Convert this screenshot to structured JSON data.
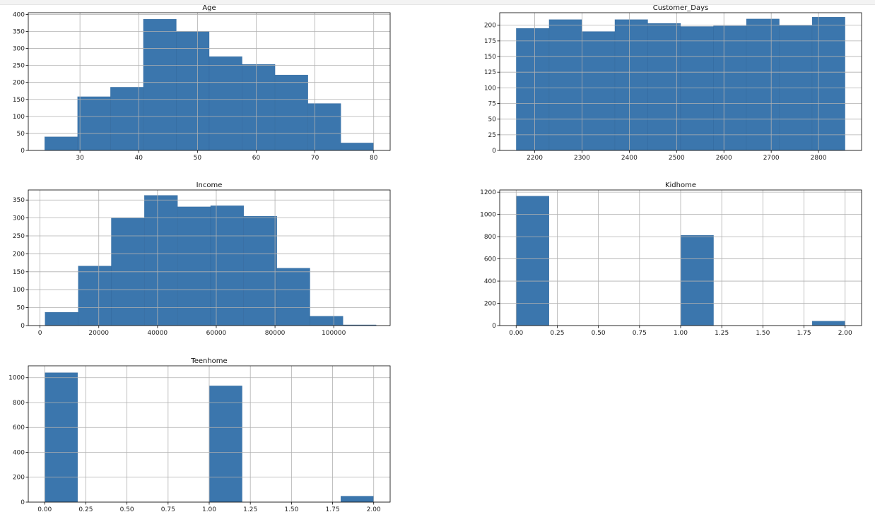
{
  "figure": {
    "bar_color": "#3b76ad",
    "bar_edge_color": "#2f6396",
    "grid_color": "#b0b0b0",
    "axis_color": "#000000",
    "background": "#ffffff"
  },
  "chart_data": [
    {
      "type": "bar",
      "title": "Age",
      "grid": true,
      "xlim": [
        21.2,
        82.8
      ],
      "ylim": [
        0,
        405
      ],
      "xticks": [
        30,
        40,
        50,
        60,
        70,
        80
      ],
      "yticks": [
        0,
        50,
        100,
        150,
        200,
        250,
        300,
        350,
        400
      ],
      "bin_edges": [
        24,
        29.6,
        35.2,
        40.8,
        46.4,
        52,
        57.6,
        63.2,
        68.8,
        74.4,
        80
      ],
      "values": [
        40,
        158,
        186,
        386,
        350,
        276,
        253,
        222,
        138,
        22
      ]
    },
    {
      "type": "bar",
      "title": "Customer_Days",
      "grid": true,
      "xlim": [
        2126,
        2891
      ],
      "ylim": [
        0,
        220
      ],
      "xticks": [
        2200,
        2300,
        2400,
        2500,
        2600,
        2700,
        2800
      ],
      "yticks": [
        0,
        25,
        50,
        75,
        100,
        125,
        150,
        175,
        200
      ],
      "bin_edges": [
        2161,
        2230.5,
        2300,
        2369.5,
        2439,
        2508.5,
        2578,
        2647.5,
        2717,
        2786.5,
        2856
      ],
      "values": [
        195,
        209,
        190,
        209,
        203,
        198,
        199,
        210,
        200,
        213
      ]
    },
    {
      "type": "bar",
      "title": "Income",
      "grid": true,
      "xlim": [
        -4000,
        119200
      ],
      "ylim": [
        0,
        378
      ],
      "xticks": [
        0,
        20000,
        40000,
        60000,
        80000,
        100000
      ],
      "yticks": [
        0,
        50,
        100,
        150,
        200,
        250,
        300,
        350
      ],
      "bin_edges": [
        1730,
        13000,
        24270,
        35540,
        46810,
        58080,
        69350,
        80620,
        91890,
        103160,
        114430
      ],
      "values": [
        37,
        166,
        301,
        363,
        331,
        334,
        305,
        160,
        26,
        2
      ]
    },
    {
      "type": "bar",
      "title": "Kidhome",
      "grid": true,
      "xlim": [
        -0.1,
        2.1
      ],
      "ylim": [
        0,
        1220
      ],
      "xticks": [
        0.0,
        0.25,
        0.5,
        0.75,
        1.0,
        1.25,
        1.5,
        1.75,
        2.0
      ],
      "xtick_labels": [
        "0.00",
        "0.25",
        "0.50",
        "0.75",
        "1.00",
        "1.25",
        "1.50",
        "1.75",
        "2.00"
      ],
      "yticks": [
        0,
        200,
        400,
        600,
        800,
        1000,
        1200
      ],
      "bin_edges": [
        0,
        0.2,
        0.4,
        0.6,
        0.8,
        1.0,
        1.2,
        1.4,
        1.6,
        1.8,
        2.0
      ],
      "values": [
        1165,
        0,
        0,
        0,
        0,
        812,
        0,
        0,
        0,
        40
      ]
    },
    {
      "type": "bar",
      "title": "Teenhome",
      "grid": true,
      "xlim": [
        -0.1,
        2.1
      ],
      "ylim": [
        0,
        1095
      ],
      "xticks": [
        0.0,
        0.25,
        0.5,
        0.75,
        1.0,
        1.25,
        1.5,
        1.75,
        2.0
      ],
      "xtick_labels": [
        "0.00",
        "0.25",
        "0.50",
        "0.75",
        "1.00",
        "1.25",
        "1.50",
        "1.75",
        "2.00"
      ],
      "yticks": [
        0,
        200,
        400,
        600,
        800,
        1000
      ],
      "bin_edges": [
        0,
        0.2,
        0.4,
        0.6,
        0.8,
        1.0,
        1.2,
        1.4,
        1.6,
        1.8,
        2.0
      ],
      "values": [
        1040,
        0,
        0,
        0,
        0,
        934,
        0,
        0,
        0,
        48
      ]
    }
  ]
}
